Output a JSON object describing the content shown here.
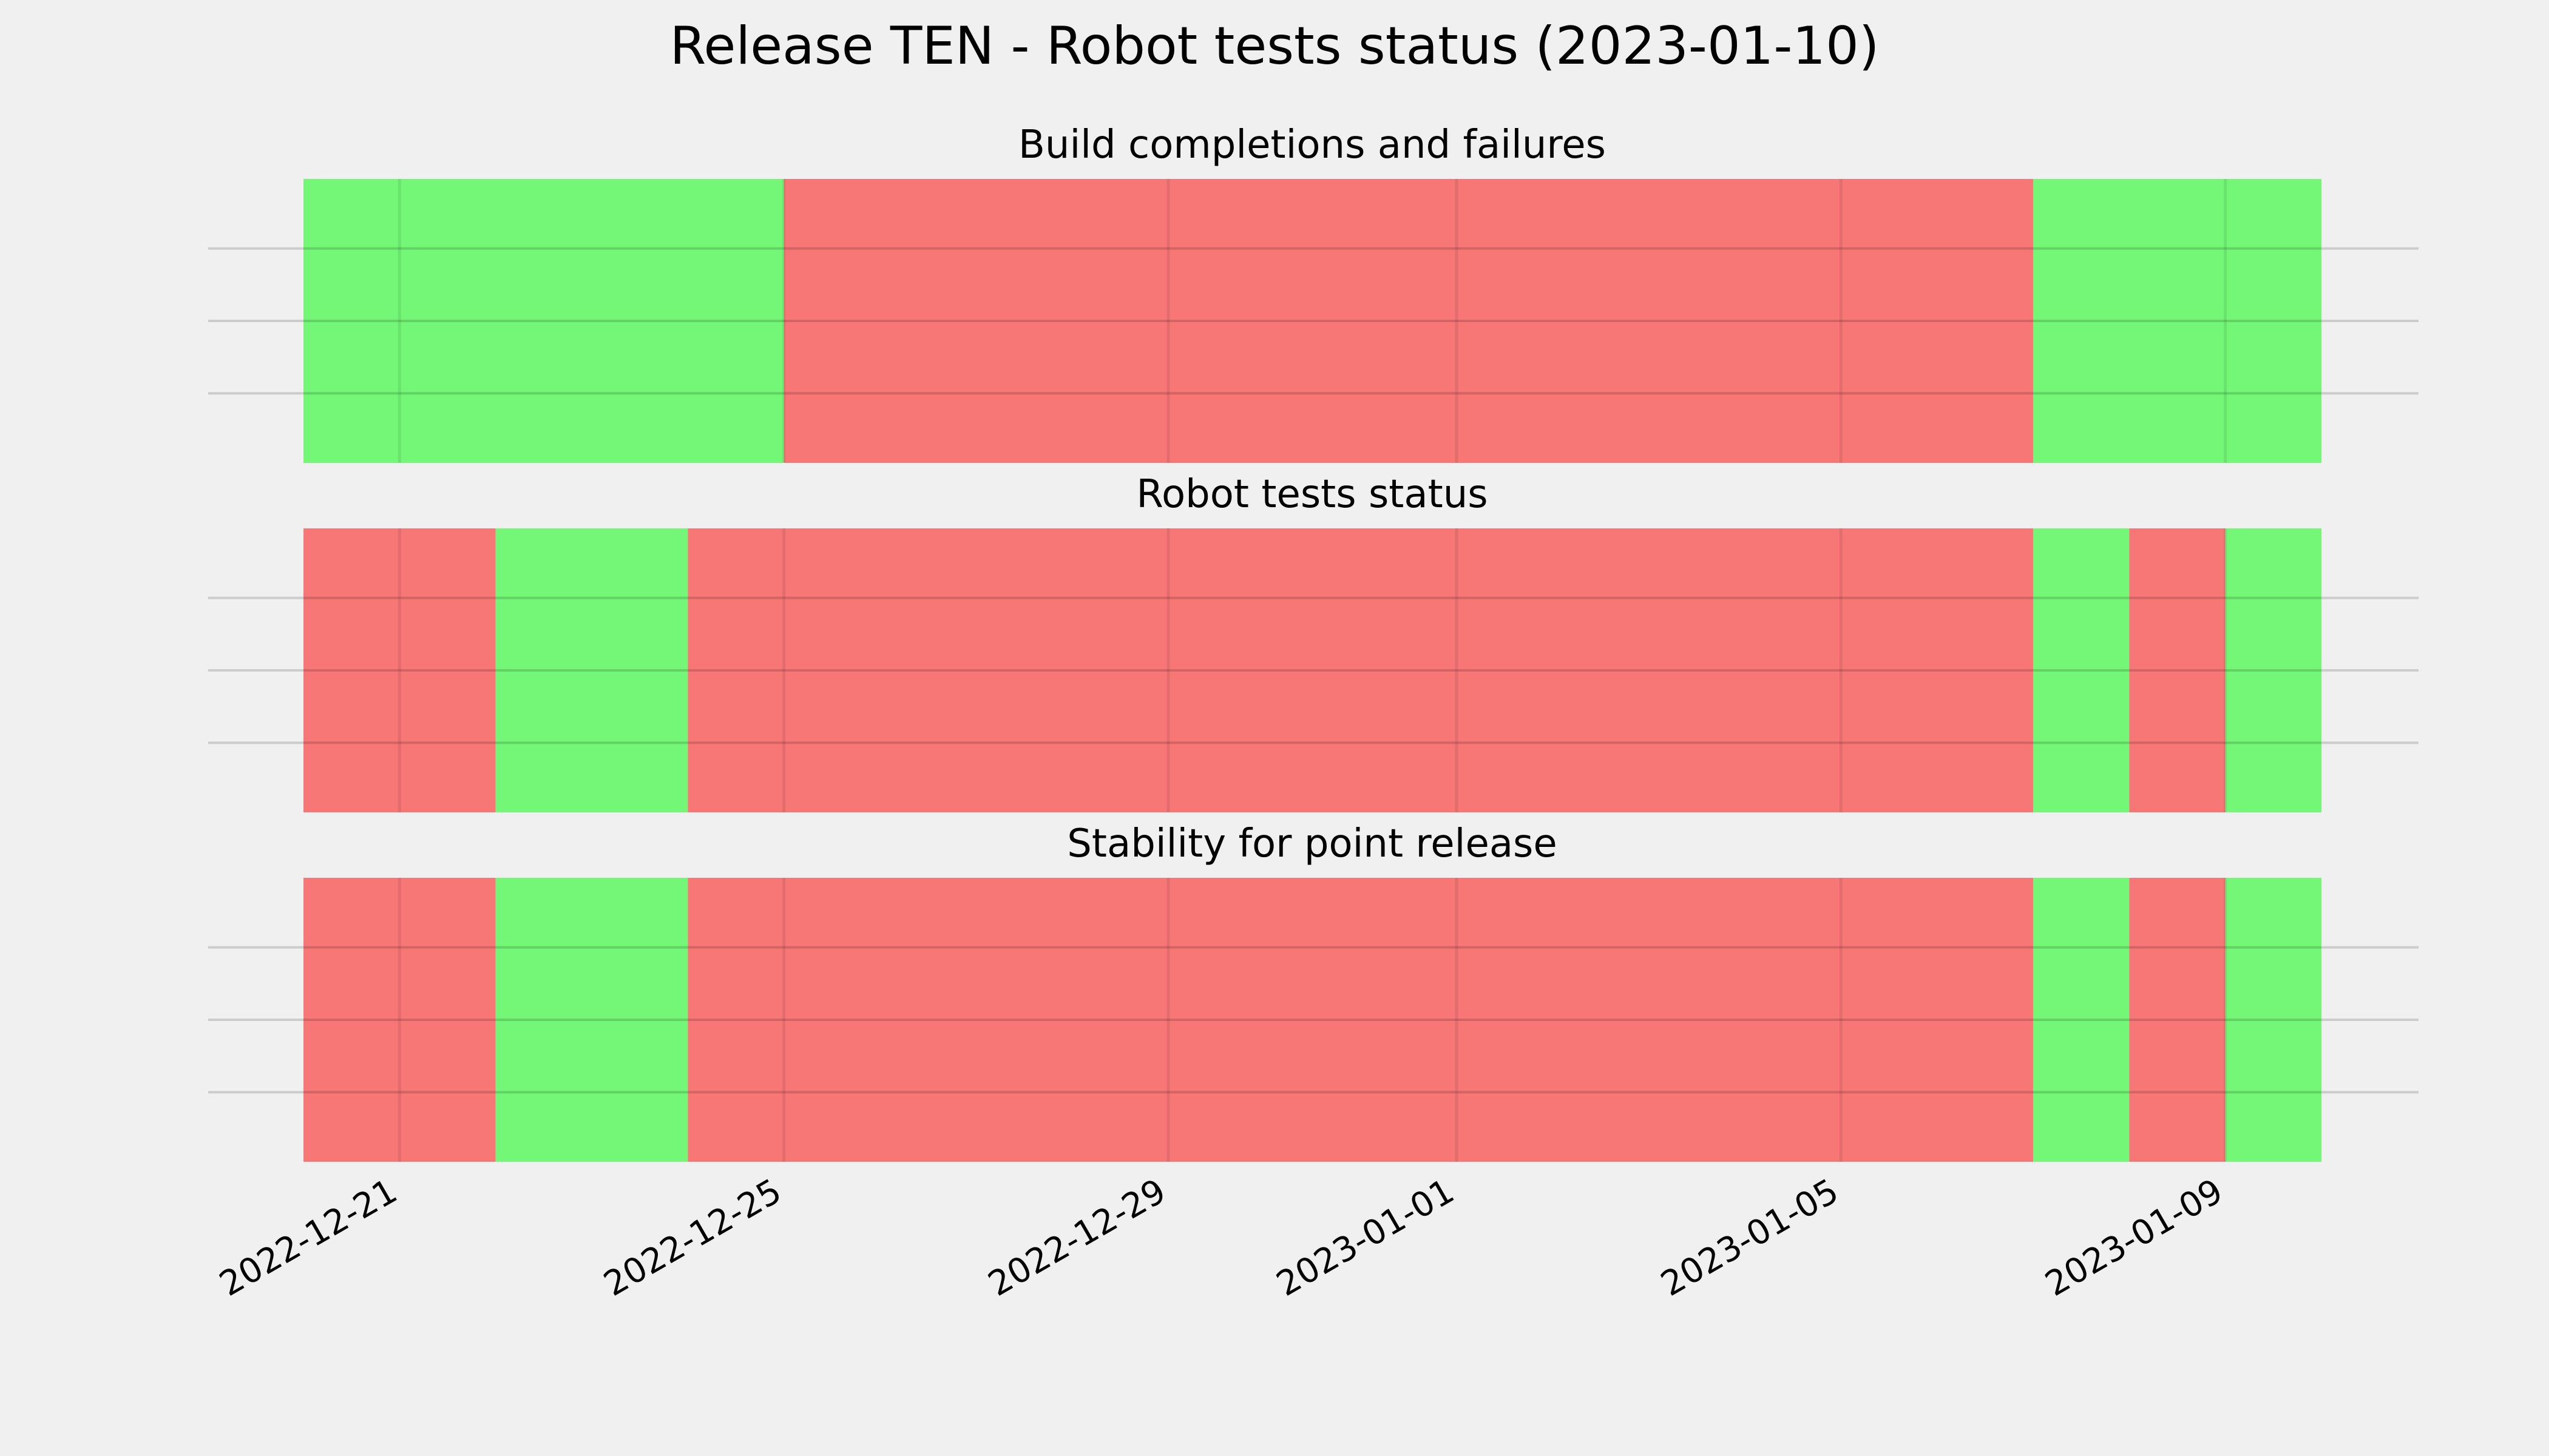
{
  "chart_data": {
    "type": "timeline",
    "title": "Release TEN - Robot tests status (2023-01-10)",
    "x_range": [
      "2022-12-20",
      "2023-01-10"
    ],
    "x_ticks": [
      "2022-12-21",
      "2022-12-25",
      "2022-12-29",
      "2023-01-01",
      "2023-01-05",
      "2023-01-09"
    ],
    "status_colors": {
      "pass": "#74f777",
      "fail": "#f77676"
    },
    "grid": true,
    "panels": [
      {
        "title": "Build completions and failures",
        "segments": [
          {
            "start": "2022-12-20",
            "end": "2022-12-25",
            "status": "pass"
          },
          {
            "start": "2022-12-25",
            "end": "2023-01-07",
            "status": "fail"
          },
          {
            "start": "2023-01-07",
            "end": "2023-01-10",
            "status": "pass"
          }
        ]
      },
      {
        "title": "Robot tests status",
        "segments": [
          {
            "start": "2022-12-20",
            "end": "2022-12-22",
            "status": "fail"
          },
          {
            "start": "2022-12-22",
            "end": "2022-12-24",
            "status": "pass"
          },
          {
            "start": "2022-12-24",
            "end": "2023-01-07",
            "status": "fail"
          },
          {
            "start": "2023-01-07",
            "end": "2023-01-08",
            "status": "pass"
          },
          {
            "start": "2023-01-08",
            "end": "2023-01-09",
            "status": "fail"
          },
          {
            "start": "2023-01-09",
            "end": "2023-01-10",
            "status": "pass"
          }
        ]
      },
      {
        "title": "Stability for point release",
        "segments": [
          {
            "start": "2022-12-20",
            "end": "2022-12-22",
            "status": "fail"
          },
          {
            "start": "2022-12-22",
            "end": "2022-12-24",
            "status": "pass"
          },
          {
            "start": "2022-12-24",
            "end": "2023-01-07",
            "status": "fail"
          },
          {
            "start": "2023-01-07",
            "end": "2023-01-08",
            "status": "pass"
          },
          {
            "start": "2023-01-08",
            "end": "2023-01-09",
            "status": "fail"
          },
          {
            "start": "2023-01-09",
            "end": "2023-01-10",
            "status": "pass"
          }
        ]
      }
    ]
  }
}
